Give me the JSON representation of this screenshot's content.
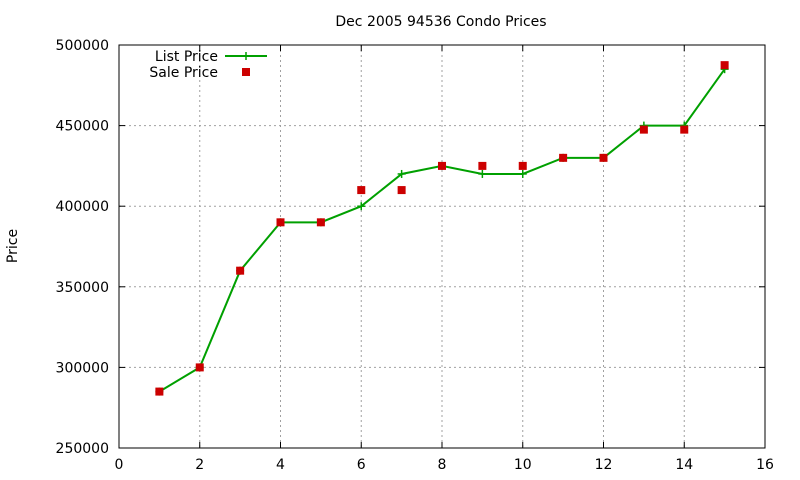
{
  "chart_data": {
    "type": "line",
    "title": "Dec 2005 94536 Condo Prices",
    "xlabel": "",
    "ylabel": "Price",
    "xlim": [
      0,
      16
    ],
    "ylim": [
      250000,
      500000
    ],
    "x_ticks": [
      0,
      2,
      4,
      6,
      8,
      10,
      12,
      14,
      16
    ],
    "y_ticks": [
      250000,
      300000,
      350000,
      400000,
      450000,
      500000
    ],
    "grid": true,
    "legend_position": "top-left",
    "series": [
      {
        "name": "List Price",
        "style": "lines-and-plus-points",
        "color": "#00a000",
        "x": [
          1,
          2,
          3,
          4,
          5,
          6,
          7,
          8,
          9,
          10,
          11,
          12,
          13,
          14,
          15
        ],
        "y": [
          285000,
          300000,
          360000,
          390000,
          390000,
          400000,
          420000,
          425000,
          420000,
          420000,
          430000,
          430000,
          450000,
          450000,
          485000
        ]
      },
      {
        "name": "Sale Price",
        "style": "square-points",
        "color": "#cc0000",
        "x": [
          1,
          2,
          3,
          4,
          5,
          6,
          7,
          8,
          9,
          10,
          11,
          12,
          13,
          14,
          15
        ],
        "y": [
          285000,
          300000,
          360000,
          390000,
          390000,
          410000,
          410000,
          425000,
          425000,
          425000,
          430000,
          430000,
          447500,
          447500,
          487500
        ]
      }
    ]
  }
}
